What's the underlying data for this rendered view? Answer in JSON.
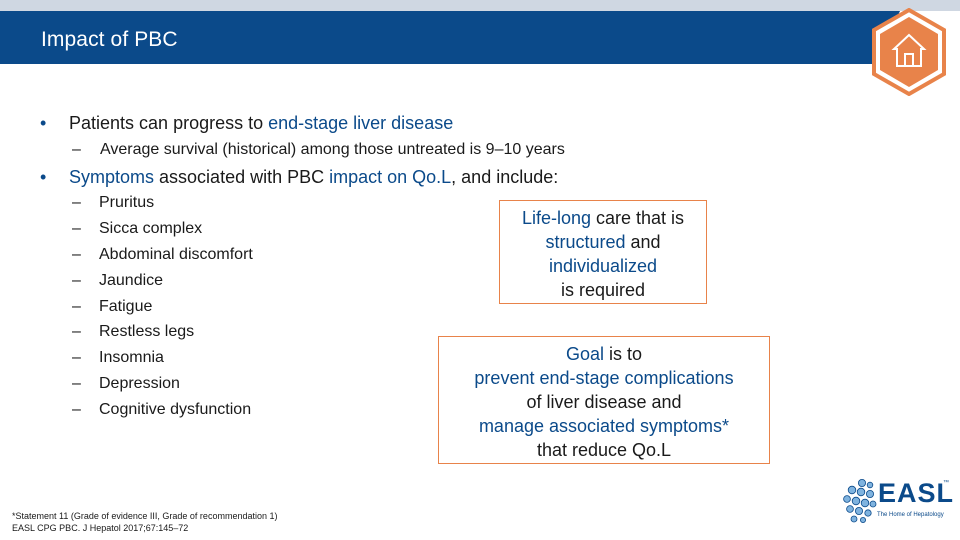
{
  "slide": {
    "title": "Impact of PBC"
  },
  "bullet1": {
    "pre": "Patients can progress to ",
    "highlight": "end-stage liver disease"
  },
  "sub1": {
    "text": "Average survival (historical) among those untreated is 9–10 years"
  },
  "bullet2": {
    "h1": "Symptoms",
    "mid": " associated with PBC ",
    "h2": "impact on Qo.L",
    "post": ", and include:"
  },
  "symptoms": [
    "Pruritus",
    "Sicca complex",
    "Abdominal discomfort",
    "Jaundice",
    "Fatigue",
    "Restless legs",
    "Insomnia",
    "Depression",
    "Cognitive dysfunction"
  ],
  "box1": {
    "l1_h": "Life-long",
    "l1_rest": " care that is",
    "l2_h": "structured",
    "l2_rest": " and",
    "l3_h": "individualized",
    "l4": "is required"
  },
  "box2": {
    "l1_h": "Goal",
    "l1_rest": " is to",
    "l2_h": "prevent end-stage complications",
    "l3": "of liver disease and",
    "l4_h": "manage associated symptoms*",
    "l5": "that reduce Qo.L"
  },
  "footnote": {
    "line1": "*Statement 11 (Grade of evidence III, Grade of recommendation 1)",
    "line2": "EASL CPG PBC. J Hepatol 2017;67:145–72"
  },
  "logo": {
    "text": "EASL",
    "tm": "™",
    "tagline": "The Home of Hepatology"
  },
  "colors": {
    "title_bar": "#0b4a8a",
    "highlight": "#0b4a8a",
    "box_border": "#e8834a",
    "home_icon": "#e8834a"
  },
  "icons": {
    "home": "house-icon",
    "logo_mark": "dot-cluster-icon"
  }
}
